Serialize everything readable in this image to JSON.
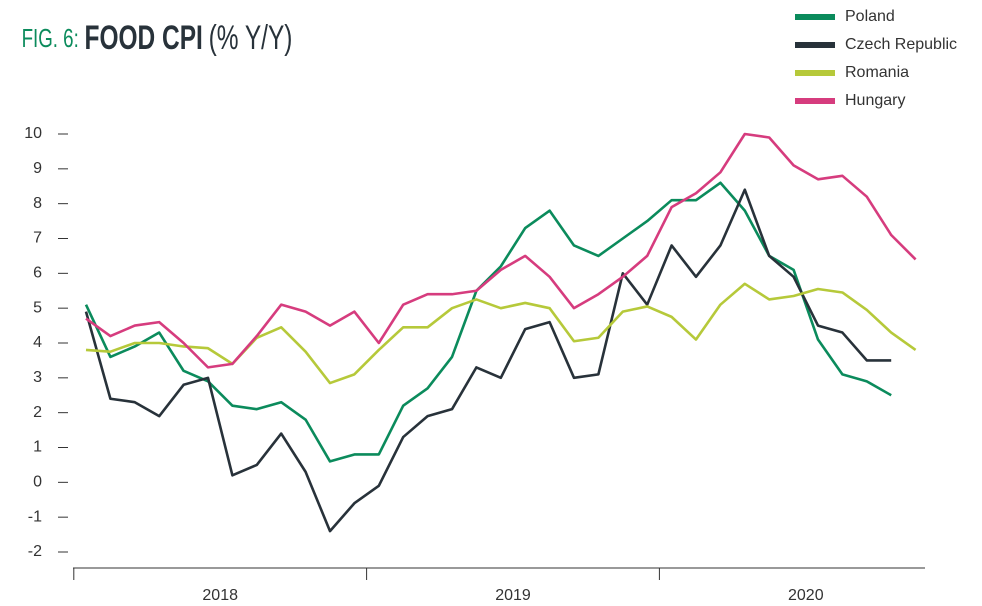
{
  "chart_data": {
    "type": "line",
    "title_prefix": "FIG. 6:",
    "title": "FOOD CPI",
    "subtitle": "(% Y/Y)",
    "categories": [
      null,
      null,
      null,
      null,
      null,
      null,
      null,
      null,
      null,
      null,
      null,
      null,
      null,
      null,
      null,
      null,
      null,
      null,
      null,
      null,
      null,
      null,
      null,
      null,
      null,
      null,
      null,
      null,
      null,
      null,
      null,
      null,
      null,
      null,
      null
    ],
    "year_labels": [
      "2018",
      "2019",
      "2020"
    ],
    "series": [
      {
        "name": "Poland",
        "color": "#0b8b5c",
        "values": [
          5.1,
          3.6,
          3.9,
          4.3,
          3.2,
          2.9,
          2.2,
          2.1,
          2.3,
          1.8,
          0.6,
          0.8,
          0.8,
          2.2,
          2.7,
          3.6,
          5.5,
          6.2,
          7.3,
          7.8,
          6.8,
          6.5,
          7.0,
          7.5,
          8.1,
          8.1,
          8.6,
          7.8,
          6.5,
          6.1,
          4.1,
          3.1,
          2.9,
          2.5,
          null
        ]
      },
      {
        "name": "Czech Republic",
        "color": "#28323a",
        "values": [
          4.9,
          2.4,
          2.3,
          1.9,
          2.8,
          3.0,
          0.2,
          0.5,
          1.4,
          0.3,
          -1.4,
          -0.6,
          -0.1,
          1.3,
          1.9,
          2.1,
          3.3,
          3.0,
          4.4,
          4.6,
          3.0,
          3.1,
          6.0,
          5.1,
          6.8,
          5.9,
          6.8,
          8.4,
          6.5,
          5.9,
          4.5,
          4.3,
          3.5,
          3.5,
          null
        ]
      },
      {
        "name": "Romania",
        "color": "#b6c93a",
        "values": [
          3.8,
          3.75,
          4.0,
          4.0,
          3.9,
          3.85,
          3.4,
          4.15,
          4.45,
          3.75,
          2.85,
          3.1,
          3.8,
          4.45,
          4.45,
          5.0,
          5.25,
          5.0,
          5.15,
          5.0,
          4.05,
          4.15,
          4.9,
          5.05,
          4.75,
          4.1,
          5.1,
          5.7,
          5.25,
          5.35,
          5.55,
          5.45,
          4.95,
          4.3,
          3.8
        ]
      },
      {
        "name": "Hungary",
        "color": "#d63c7e",
        "values": [
          4.7,
          4.2,
          4.5,
          4.6,
          4.0,
          3.3,
          3.4,
          4.2,
          5.1,
          4.9,
          4.5,
          4.9,
          4.0,
          5.1,
          5.4,
          5.4,
          5.5,
          6.1,
          6.5,
          5.9,
          5.0,
          5.4,
          5.9,
          6.5,
          7.9,
          8.3,
          8.9,
          10.0,
          9.9,
          9.1,
          8.7,
          8.8,
          8.2,
          7.1,
          6.4
        ]
      }
    ],
    "ylim": [
      -2,
      10
    ],
    "yticks": [
      -2,
      -1,
      0,
      1,
      2,
      3,
      4,
      5,
      6,
      7,
      8,
      9,
      10
    ]
  }
}
